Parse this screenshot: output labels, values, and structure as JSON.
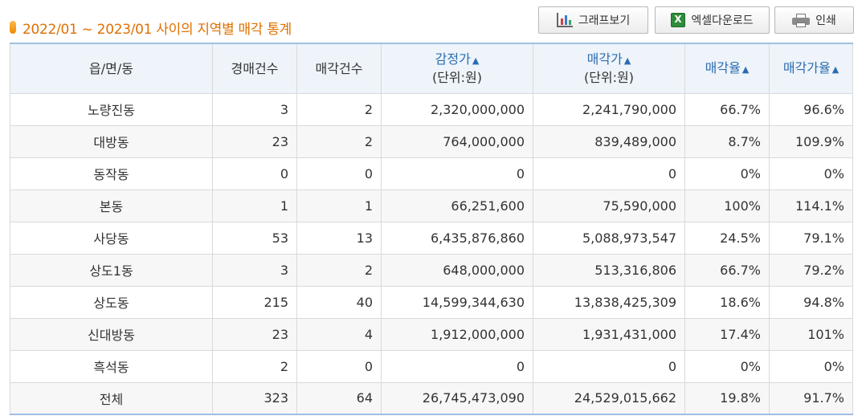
{
  "header": {
    "title": "2022/01 ~ 2023/01 사이의 지역별 매각 통계",
    "buttons": {
      "graph": "그래프보기",
      "excel": "엑셀다운로드",
      "print": "인쇄"
    }
  },
  "table": {
    "columns": {
      "region": "읍/면/동",
      "auction_count": "경매건수",
      "sold_count": "매각건수",
      "appraisal": "감정가",
      "appraisal_unit": "(단위:원)",
      "sale_price": "매각가",
      "sale_price_unit": "(단위:원)",
      "sale_rate": "매각율",
      "sale_price_rate": "매각가율",
      "sort_arrow": "▲"
    },
    "rows": [
      [
        "노량진동",
        "3",
        "2",
        "2,320,000,000",
        "2,241,790,000",
        "66.7%",
        "96.6%"
      ],
      [
        "대방동",
        "23",
        "2",
        "764,000,000",
        "839,489,000",
        "8.7%",
        "109.9%"
      ],
      [
        "동작동",
        "0",
        "0",
        "0",
        "0",
        "0%",
        "0%"
      ],
      [
        "본동",
        "1",
        "1",
        "66,251,600",
        "75,590,000",
        "100%",
        "114.1%"
      ],
      [
        "사당동",
        "53",
        "13",
        "6,435,876,860",
        "5,088,973,547",
        "24.5%",
        "79.1%"
      ],
      [
        "상도1동",
        "3",
        "2",
        "648,000,000",
        "513,316,806",
        "66.7%",
        "79.2%"
      ],
      [
        "상도동",
        "215",
        "40",
        "14,599,344,630",
        "13,838,425,309",
        "18.6%",
        "94.8%"
      ],
      [
        "신대방동",
        "23",
        "4",
        "1,912,000,000",
        "1,931,431,000",
        "17.4%",
        "101%"
      ],
      [
        "흑석동",
        "2",
        "0",
        "0",
        "0",
        "0%",
        "0%"
      ],
      [
        "전체",
        "323",
        "64",
        "26,745,473,090",
        "24,529,015,662",
        "19.8%",
        "91.7%"
      ]
    ]
  },
  "colors": {
    "title": "#e07000",
    "header_bg": "#eef4fa",
    "sortable_header": "#2b6cb0",
    "border_accent": "#9fbfe0"
  }
}
